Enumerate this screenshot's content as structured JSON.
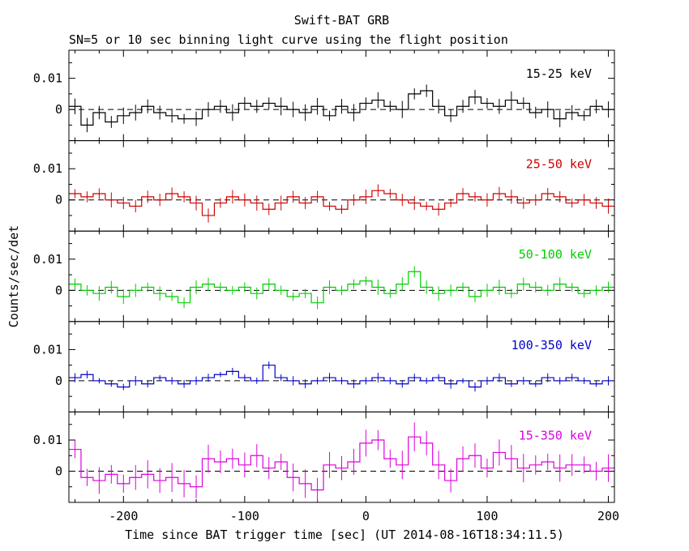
{
  "chart_data": {
    "type": "line",
    "subtype": "step-histogram-with-error-bars",
    "title": "Swift-BAT GRB",
    "subtitle": "SN=5 or 10 sec binning light curve using the flight position",
    "xlabel": "Time since BAT trigger time [sec] (UT 2014-08-16T18:34:11.5)",
    "ylabel": "Counts/sec/det",
    "xlim": [
      -245,
      205
    ],
    "ylim": [
      -0.01,
      0.019
    ],
    "x_major_ticks": [
      -200,
      -100,
      0,
      100,
      200
    ],
    "x_tick_labels": [
      "-200",
      "-100",
      "0",
      "100",
      "200"
    ],
    "x_minor_step": 20,
    "y_major_ticks": [
      0,
      0.01
    ],
    "y_tick_labels": [
      "0",
      "0.01"
    ],
    "y_minor_ticks": [
      -0.005,
      0.005,
      0.015
    ],
    "bin_start": -245,
    "bin_width": 10,
    "zero_line_style": "dashed",
    "zero_line_color": "#000000",
    "grid": false,
    "legend_position": "inside-top-right-per-panel",
    "panels": [
      {
        "label": "15-25 keV",
        "color": "#000000",
        "error": 0.0022,
        "values": [
          0.001,
          -0.005,
          -0.001,
          -0.004,
          -0.002,
          -0.001,
          0.001,
          -0.001,
          -0.002,
          -0.003,
          -0.003,
          0.0,
          0.001,
          -0.001,
          0.002,
          0.001,
          0.002,
          0.001,
          0.0,
          -0.001,
          0.001,
          -0.002,
          0.001,
          -0.001,
          0.002,
          0.003,
          0.001,
          0.0,
          0.005,
          0.006,
          0.001,
          -0.002,
          0.001,
          0.004,
          0.002,
          0.001,
          0.003,
          0.002,
          -0.001,
          0.0,
          -0.003,
          -0.001,
          -0.002,
          0.001,
          0.0
        ]
      },
      {
        "label": "25-50 keV",
        "color": "#cc0000",
        "error": 0.0019,
        "values": [
          0.002,
          0.001,
          0.002,
          0.0,
          -0.001,
          -0.002,
          0.001,
          0.0,
          0.002,
          0.001,
          -0.001,
          -0.005,
          -0.001,
          0.001,
          0.0,
          -0.001,
          -0.003,
          -0.001,
          0.001,
          -0.001,
          0.001,
          -0.002,
          -0.003,
          0.0,
          0.001,
          0.003,
          0.002,
          0.0,
          -0.001,
          -0.002,
          -0.003,
          -0.001,
          0.002,
          0.001,
          0.0,
          0.002,
          0.001,
          -0.001,
          0.0,
          0.002,
          0.001,
          -0.001,
          0.0,
          -0.001,
          -0.002
        ]
      },
      {
        "label": "50-100 keV",
        "color": "#00cc00",
        "error": 0.0019,
        "values": [
          0.002,
          0.0,
          -0.001,
          0.001,
          -0.002,
          0.0,
          0.001,
          -0.001,
          -0.002,
          -0.004,
          0.001,
          0.002,
          0.001,
          0.0,
          0.001,
          -0.001,
          0.002,
          0.0,
          -0.002,
          -0.001,
          -0.004,
          0.001,
          0.0,
          0.002,
          0.003,
          0.001,
          -0.001,
          0.002,
          0.006,
          0.001,
          -0.001,
          0.0,
          0.001,
          -0.002,
          0.0,
          0.001,
          -0.001,
          0.002,
          0.001,
          0.0,
          0.002,
          0.001,
          -0.001,
          0.0,
          0.001
        ]
      },
      {
        "label": "100-350 keV",
        "color": "#0000cc",
        "error": 0.0012,
        "values": [
          0.001,
          0.002,
          0.0,
          -0.001,
          -0.002,
          0.0,
          -0.001,
          0.001,
          0.0,
          -0.001,
          0.0,
          0.001,
          0.002,
          0.003,
          0.001,
          0.0,
          0.005,
          0.001,
          0.0,
          -0.001,
          0.0,
          0.001,
          0.0,
          -0.001,
          0.0,
          0.001,
          0.0,
          -0.001,
          0.001,
          0.0,
          0.001,
          -0.001,
          0.0,
          -0.002,
          0.0,
          0.001,
          -0.001,
          0.0,
          -0.001,
          0.001,
          0.0,
          0.001,
          0.0,
          -0.001,
          0.0
        ]
      },
      {
        "label": "15-350 keV",
        "color": "#dd00dd",
        "error": 0.0036,
        "values": [
          0.007,
          -0.002,
          -0.003,
          -0.001,
          -0.004,
          -0.002,
          -0.001,
          -0.003,
          -0.002,
          -0.004,
          -0.005,
          0.004,
          0.003,
          0.004,
          0.002,
          0.005,
          0.001,
          0.003,
          -0.002,
          -0.004,
          -0.006,
          0.002,
          0.001,
          0.003,
          0.009,
          0.01,
          0.004,
          0.002,
          0.011,
          0.009,
          0.002,
          -0.003,
          0.004,
          0.005,
          0.001,
          0.006,
          0.004,
          0.001,
          0.002,
          0.003,
          0.001,
          0.002,
          0.002,
          0.0,
          0.001
        ]
      }
    ]
  }
}
